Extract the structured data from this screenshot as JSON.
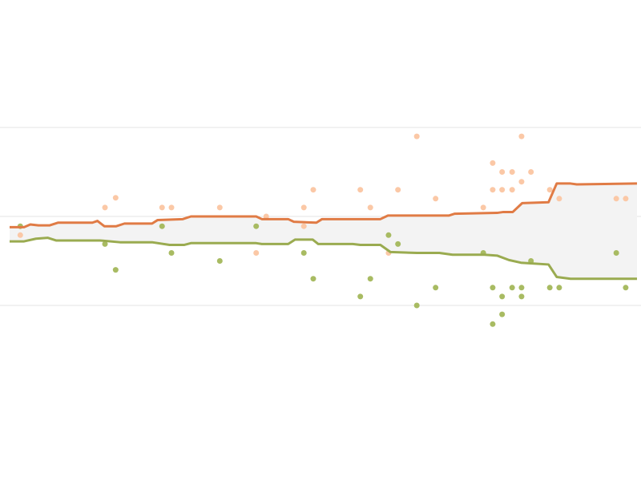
{
  "chart_data": {
    "type": "line",
    "grid": true,
    "xlim": [
      0,
      100
    ],
    "ylim": [
      30,
      70
    ],
    "yticks": [
      40,
      50,
      60
    ],
    "band": {
      "color": "#f3f3f3"
    },
    "series": [
      {
        "color": "#e07b45",
        "x": [
          0,
          2.3,
          3.3,
          4.6,
          6.4,
          7.7,
          13.2,
          14.0,
          15.1,
          17.0,
          18.3,
          22.7,
          23.6,
          27.6,
          28.9,
          39.3,
          40.2,
          44.4,
          45.3,
          48.9,
          49.8,
          59.1,
          60.3,
          66.8,
          70.0,
          70.9,
          77.7,
          78.7,
          80.2,
          81.7,
          85.9,
          87.2,
          89.4,
          90.4,
          100
        ],
        "values": [
          48.8,
          48.8,
          49.1,
          49.0,
          49.0,
          49.3,
          49.3,
          49.5,
          48.9,
          48.9,
          49.2,
          49.2,
          49.6,
          49.7,
          50.0,
          50.0,
          49.7,
          49.7,
          49.4,
          49.3,
          49.7,
          49.7,
          50.1,
          50.1,
          50.1,
          50.3,
          50.4,
          50.5,
          50.5,
          51.5,
          51.6,
          53.7,
          53.7,
          53.6,
          53.7
        ]
      },
      {
        "color": "#9aab50",
        "x": [
          0,
          2.3,
          4.2,
          6.1,
          7.4,
          14.4,
          17.6,
          22.7,
          25.5,
          27.8,
          28.9,
          39.3,
          40.2,
          44.4,
          45.5,
          48.3,
          49.2,
          54.7,
          55.9,
          59.1,
          60.7,
          64.9,
          68.5,
          70.6,
          75.7,
          77.7,
          79.6,
          81.5,
          85.9,
          87.2,
          89.4,
          93.0,
          100
        ],
        "values": [
          47.2,
          47.2,
          47.5,
          47.6,
          47.3,
          47.3,
          47.1,
          47.1,
          46.8,
          46.8,
          47.0,
          47.0,
          46.9,
          46.9,
          47.4,
          47.4,
          46.9,
          46.9,
          46.8,
          46.8,
          46.0,
          45.9,
          45.9,
          45.7,
          45.7,
          45.6,
          45.1,
          44.8,
          44.6,
          43.2,
          43.0,
          43.0,
          43.0
        ]
      }
    ],
    "scatter": [
      {
        "color": "#fbc8a6",
        "x": [
          1.7,
          15.2,
          16.9,
          24.3,
          25.8,
          33.5,
          39.3,
          40.9,
          46.9,
          46.9,
          48.4,
          55.9,
          57.5,
          61.9,
          64.9,
          67.9,
          75.5,
          77.0,
          77.0,
          78.5,
          78.5,
          80.1,
          80.1,
          81.6,
          81.6,
          83.1,
          86.1,
          87.6,
          96.7,
          98.2,
          60.4
        ],
        "values": [
          47.9,
          51.0,
          52.1,
          51.0,
          51.0,
          51.0,
          45.9,
          50.0,
          51.0,
          48.9,
          53.0,
          53.0,
          51.0,
          53.0,
          59.0,
          52.0,
          51.0,
          56.0,
          53.0,
          55.0,
          53.0,
          55.0,
          53.0,
          59.0,
          53.9,
          55.0,
          53.0,
          52.0,
          52.0,
          52.0,
          45.9
        ]
      },
      {
        "color": "#a8bb62",
        "x": [
          1.7,
          15.2,
          16.9,
          24.3,
          25.8,
          33.5,
          39.3,
          46.9,
          48.4,
          55.9,
          57.5,
          60.4,
          61.9,
          64.9,
          67.9,
          75.5,
          77.0,
          77.0,
          78.5,
          78.5,
          80.1,
          81.6,
          81.6,
          83.1,
          86.1,
          87.6,
          96.7,
          98.2
        ],
        "values": [
          48.9,
          46.9,
          44.0,
          48.9,
          45.9,
          45.0,
          48.9,
          45.9,
          43.0,
          41.0,
          43.0,
          47.9,
          46.9,
          40.0,
          42.0,
          45.9,
          42.0,
          37.9,
          41.0,
          39.0,
          42.0,
          42.0,
          41.0,
          45.0,
          42.0,
          42.0,
          45.9,
          42.0
        ]
      }
    ]
  }
}
